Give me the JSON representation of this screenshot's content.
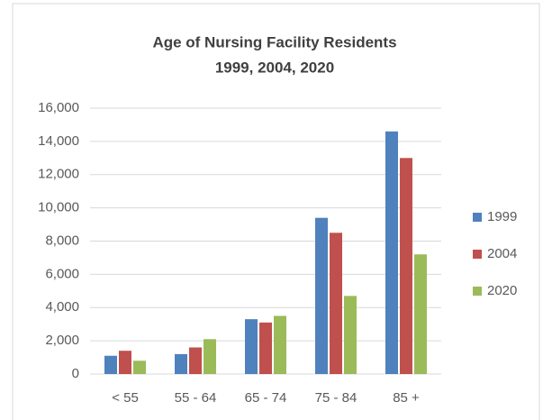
{
  "chart_data": {
    "type": "bar",
    "title": "Age of Nursing Facility Residents",
    "subtitle": "1999, 2004, 2020",
    "categories": [
      "< 55",
      "55 - 64",
      "65 - 74",
      "75 - 84",
      "85 +"
    ],
    "series": [
      {
        "name": "1999",
        "color": "#4f81bd",
        "values": [
          1100,
          1200,
          3300,
          9400,
          14600
        ]
      },
      {
        "name": "2004",
        "color": "#c0504d",
        "values": [
          1400,
          1600,
          3100,
          8500,
          13000
        ]
      },
      {
        "name": "2020",
        "color": "#9bbb59",
        "values": [
          800,
          2100,
          3500,
          4700,
          7200
        ]
      }
    ],
    "ylim": [
      0,
      16000
    ],
    "yticks": [
      0,
      {
        "value": 2000,
        "label": "2,000"
      },
      {
        "value": 4000,
        "label": "4,000"
      },
      {
        "value": 6000,
        "label": "6,000"
      },
      {
        "value": 8000,
        "label": "8,000"
      },
      {
        "value": 10000,
        "label": "10,000"
      },
      {
        "value": 12000,
        "label": "12,000"
      },
      {
        "value": 14000,
        "label": "14,000"
      },
      {
        "value": 16000,
        "label": "16,000"
      }
    ],
    "grid": true,
    "legend": "right"
  }
}
